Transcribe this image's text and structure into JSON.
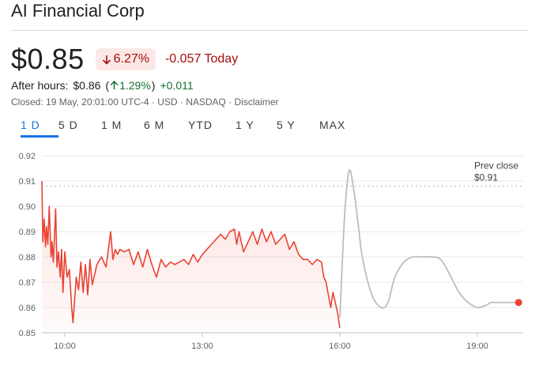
{
  "header": {
    "title": "AI Financial Corp"
  },
  "quote": {
    "price": "$0.85",
    "change_percent": "6.27%",
    "change_abs": "-0.057 Today",
    "direction_icon": "arrow-down-icon"
  },
  "after_hours": {
    "label": "After hours:",
    "price": "$0.86",
    "change_percent": "1.29%",
    "change_abs": "+0.011",
    "open_paren": "(",
    "close_paren": ")",
    "direction_icon": "arrow-up-icon"
  },
  "meta": {
    "text": "Closed: 19 May, 20:01:00 UTC-4 · USD · NASDAQ · Disclaimer"
  },
  "tabs": [
    {
      "label": "1 D",
      "active": true
    },
    {
      "label": "5 D"
    },
    {
      "label": "1 M"
    },
    {
      "label": "6 M"
    },
    {
      "label": "YTD"
    },
    {
      "label": "1 Y"
    },
    {
      "label": "5 Y"
    },
    {
      "label": "MAX"
    }
  ],
  "colors": {
    "down": "#ea4335",
    "down_text": "#a50e0e",
    "up_text": "#137333",
    "after_hours_line": "#bdbdbd",
    "active_tab": "#1a73e8"
  },
  "chart_data": {
    "type": "line",
    "ylim": [
      0.85,
      0.92
    ],
    "xlim": [
      9.5,
      20.0
    ],
    "yticks": [
      "0.92",
      "0.91",
      "0.90",
      "0.89",
      "0.88",
      "0.87",
      "0.86",
      "0.85"
    ],
    "xticks": [
      {
        "value": 10,
        "label": "10:00"
      },
      {
        "value": 13,
        "label": "13:00"
      },
      {
        "value": 16,
        "label": "16:00"
      },
      {
        "value": 19,
        "label": "19:00"
      }
    ],
    "prev_close": {
      "label_line1": "Prev close",
      "label_line2": "$0.91",
      "value": 0.908
    },
    "grid": true,
    "series": [
      {
        "session": "regular",
        "x": [
          9.5,
          9.52,
          9.55,
          9.58,
          9.6,
          9.63,
          9.66,
          9.7,
          9.72,
          9.75,
          9.8,
          9.83,
          9.86,
          9.9,
          9.93,
          9.96,
          10.0,
          10.05,
          10.1,
          10.15,
          10.18,
          10.25,
          10.3,
          10.35,
          10.4,
          10.45,
          10.5,
          10.55,
          10.6,
          10.7,
          10.8,
          10.9,
          11.0,
          11.05,
          11.1,
          11.15,
          11.2,
          11.3,
          11.4,
          11.5,
          11.6,
          11.7,
          11.8,
          11.9,
          12.0,
          12.1,
          12.2,
          12.3,
          12.4,
          12.5,
          12.6,
          12.7,
          12.8,
          12.9,
          13.0,
          13.2,
          13.4,
          13.5,
          13.6,
          13.7,
          13.75,
          13.8,
          13.9,
          14.0,
          14.1,
          14.2,
          14.3,
          14.4,
          14.5,
          14.6,
          14.7,
          14.8,
          14.9,
          15.0,
          15.1,
          15.2,
          15.3,
          15.4,
          15.5,
          15.6,
          15.65,
          15.7,
          15.75,
          15.8,
          15.85,
          15.9,
          15.95,
          16.0
        ],
        "y": [
          0.91,
          0.886,
          0.895,
          0.884,
          0.892,
          0.885,
          0.9,
          0.88,
          0.886,
          0.878,
          0.899,
          0.876,
          0.882,
          0.872,
          0.883,
          0.866,
          0.882,
          0.872,
          0.875,
          0.86,
          0.854,
          0.872,
          0.867,
          0.878,
          0.866,
          0.877,
          0.865,
          0.879,
          0.869,
          0.877,
          0.88,
          0.876,
          0.89,
          0.879,
          0.883,
          0.881,
          0.883,
          0.882,
          0.883,
          0.877,
          0.882,
          0.876,
          0.883,
          0.877,
          0.872,
          0.879,
          0.876,
          0.878,
          0.877,
          0.878,
          0.879,
          0.877,
          0.881,
          0.878,
          0.881,
          0.885,
          0.889,
          0.887,
          0.89,
          0.891,
          0.885,
          0.89,
          0.882,
          0.886,
          0.89,
          0.885,
          0.891,
          0.886,
          0.89,
          0.885,
          0.887,
          0.889,
          0.883,
          0.886,
          0.881,
          0.879,
          0.879,
          0.877,
          0.879,
          0.878,
          0.872,
          0.87,
          0.865,
          0.86,
          0.866,
          0.862,
          0.858,
          0.852
        ]
      },
      {
        "session": "after_hours",
        "x": [
          16.0,
          16.1,
          16.2,
          16.3,
          16.4,
          16.5,
          16.7,
          16.9,
          17.05,
          17.2,
          17.4,
          17.6,
          17.8,
          18.0,
          18.2,
          18.4,
          18.6,
          18.8,
          19.0,
          19.2,
          19.3,
          19.4,
          19.6,
          19.8,
          19.9
        ],
        "y": [
          0.856,
          0.895,
          0.914,
          0.907,
          0.893,
          0.879,
          0.865,
          0.86,
          0.862,
          0.872,
          0.878,
          0.88,
          0.88,
          0.88,
          0.879,
          0.873,
          0.866,
          0.862,
          0.86,
          0.861,
          0.862,
          0.862,
          0.862,
          0.862,
          0.862
        ]
      }
    ],
    "last_point": {
      "x": 19.9,
      "y": 0.862
    }
  }
}
